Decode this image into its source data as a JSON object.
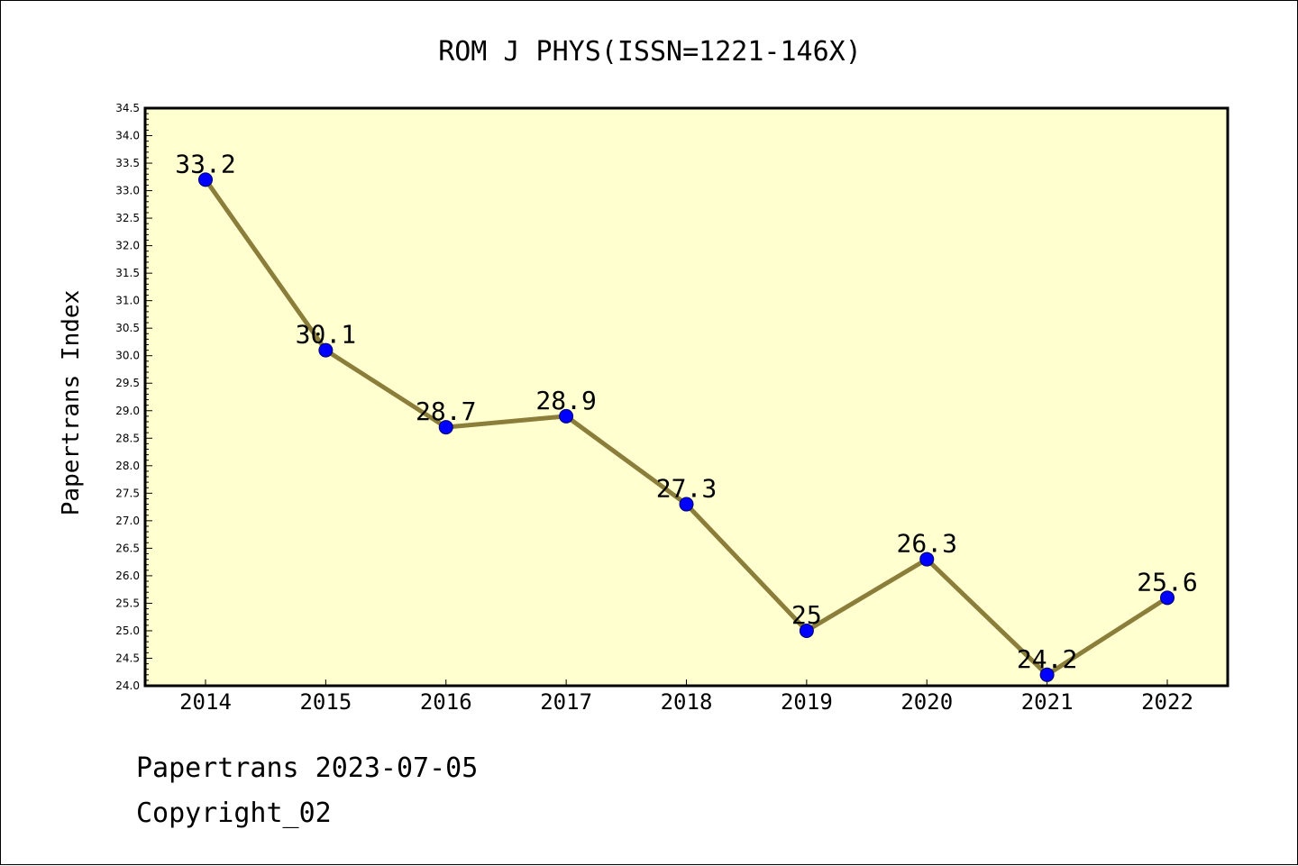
{
  "chart_data": {
    "type": "line",
    "title": "ROM J PHYS(ISSN=1221-146X)",
    "xlabel": "",
    "ylabel": "Papertrans Index",
    "x": [
      "2014",
      "2015",
      "2016",
      "2017",
      "2018",
      "2019",
      "2020",
      "2021",
      "2022"
    ],
    "series": [
      {
        "values": [
          33.2,
          30.1,
          28.7,
          28.9,
          27.3,
          25.0,
          26.3,
          24.2,
          25.6
        ],
        "labels": [
          "33.2",
          "30.1",
          "28.7",
          "28.9",
          "27.3",
          "25",
          "26.3",
          "24.2",
          "25.6"
        ]
      }
    ],
    "ylim": [
      24.0,
      34.5
    ],
    "yticks": [
      "24.0",
      "24.5",
      "25.0",
      "25.5",
      "26.0",
      "26.5",
      "27.0",
      "27.5",
      "28.0",
      "28.5",
      "29.0",
      "29.5",
      "30.0",
      "30.5",
      "31.0",
      "31.5",
      "32.0",
      "32.5",
      "33.0",
      "33.5",
      "34.0",
      "34.5"
    ],
    "grid": false,
    "legend": "none",
    "colors": {
      "plot_background": "#ffffd0",
      "line": "#8b7d3a",
      "marker": "#0000ff"
    }
  },
  "footer": {
    "line1": "Papertrans 2023-07-05",
    "line2": "Copyright_02"
  }
}
